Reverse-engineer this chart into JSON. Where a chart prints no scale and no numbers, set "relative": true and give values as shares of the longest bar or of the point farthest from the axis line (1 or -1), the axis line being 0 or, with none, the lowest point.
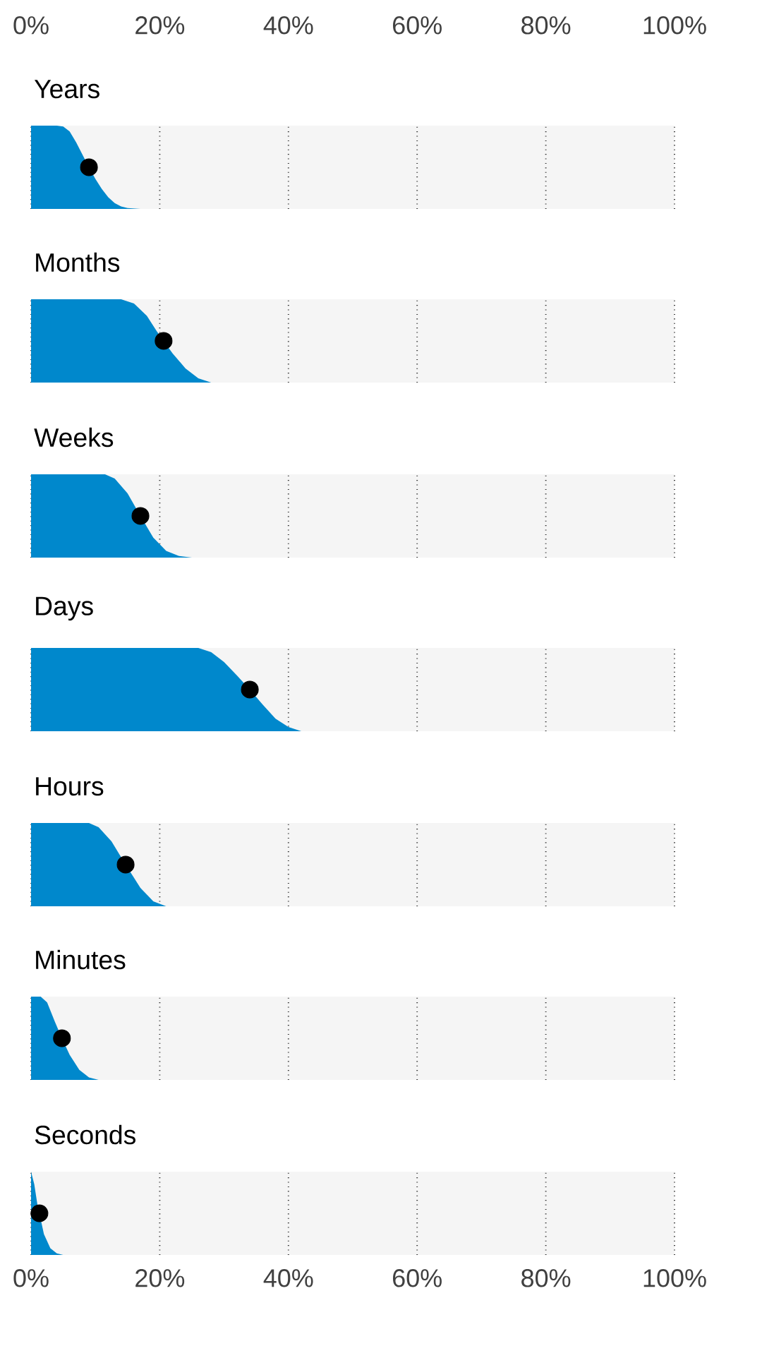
{
  "chart_data": [
    {
      "type": "area",
      "title": "Years",
      "relative": true,
      "xlim": [
        0,
        100
      ],
      "xticks": [
        {
          "value": 0,
          "label": "0%"
        },
        {
          "value": 20,
          "label": "20%"
        },
        {
          "value": 40,
          "label": "40%"
        },
        {
          "value": 60,
          "label": "60%"
        },
        {
          "value": 80,
          "label": "80%"
        },
        {
          "value": 100,
          "label": "100%"
        }
      ],
      "x2lim": [
        0,
        100
      ],
      "x2ticks": [
        {
          "value": 0,
          "label": "0%"
        },
        {
          "value": 20,
          "label": "20%"
        },
        {
          "value": 40,
          "label": "40%"
        },
        {
          "value": 60,
          "label": "60%"
        },
        {
          "value": 80,
          "label": "80%"
        },
        {
          "value": 100,
          "label": "100%"
        }
      ],
      "grid": "x",
      "tick_labels": false,
      "series": [
        {
          "type": "area",
          "color": "#0088cc",
          "x": [
            0,
            4,
            5,
            6,
            7,
            8,
            9,
            10,
            11,
            12,
            13,
            14,
            15,
            17
          ],
          "values": [
            1,
            1,
            0.99,
            0.93,
            0.8,
            0.65,
            0.5,
            0.36,
            0.24,
            0.14,
            0.07,
            0.03,
            0.01,
            0
          ]
        },
        {
          "type": "scatter",
          "color": "#000000",
          "marker": "circle",
          "x": [
            9
          ],
          "values": [
            0.5
          ]
        }
      ]
    },
    {
      "type": "area",
      "title": "Months",
      "relative": true,
      "xlim": [
        0,
        100
      ],
      "xticks": [
        {
          "value": 0,
          "label": null
        },
        {
          "value": 20,
          "label": null
        },
        {
          "value": 40,
          "label": null
        },
        {
          "value": 60,
          "label": null
        },
        {
          "value": 80,
          "label": null
        },
        {
          "value": 100,
          "label": null
        }
      ],
      "grid": "x",
      "tick_labels": false,
      "series": [
        {
          "type": "area",
          "color": "#0088cc",
          "x": [
            0,
            14,
            16,
            18,
            19.5,
            20.6,
            22,
            24,
            26,
            28
          ],
          "values": [
            1,
            1,
            0.95,
            0.8,
            0.62,
            0.5,
            0.35,
            0.17,
            0.05,
            0
          ]
        },
        {
          "type": "scatter",
          "color": "#000000",
          "marker": "circle",
          "x": [
            20.6
          ],
          "values": [
            0.5
          ]
        }
      ]
    },
    {
      "type": "area",
      "title": "Weeks",
      "relative": true,
      "xlim": [
        0,
        100
      ],
      "xticks": [
        {
          "value": 0,
          "label": null
        },
        {
          "value": 20,
          "label": null
        },
        {
          "value": 40,
          "label": null
        },
        {
          "value": 60,
          "label": null
        },
        {
          "value": 80,
          "label": null
        },
        {
          "value": 100,
          "label": null
        }
      ],
      "grid": "x",
      "tick_labels": false,
      "series": [
        {
          "type": "area",
          "color": "#0088cc",
          "x": [
            0,
            11.5,
            13,
            15,
            17,
            19,
            21,
            23,
            25
          ],
          "values": [
            1,
            1,
            0.95,
            0.77,
            0.5,
            0.24,
            0.08,
            0.02,
            0
          ]
        },
        {
          "type": "scatter",
          "color": "#000000",
          "marker": "circle",
          "x": [
            17
          ],
          "values": [
            0.5
          ]
        }
      ]
    },
    {
      "type": "area",
      "title": "Days",
      "relative": true,
      "xlim": [
        0,
        100
      ],
      "xticks": [
        {
          "value": 0,
          "label": null
        },
        {
          "value": 20,
          "label": null
        },
        {
          "value": 40,
          "label": null
        },
        {
          "value": 60,
          "label": null
        },
        {
          "value": 80,
          "label": null
        },
        {
          "value": 100,
          "label": null
        }
      ],
      "grid": "x",
      "tick_labels": false,
      "series": [
        {
          "type": "area",
          "color": "#0088cc",
          "x": [
            0,
            26,
            28,
            30,
            32,
            34,
            36,
            38,
            40,
            42
          ],
          "values": [
            1,
            1,
            0.95,
            0.83,
            0.67,
            0.5,
            0.32,
            0.15,
            0.05,
            0
          ]
        },
        {
          "type": "scatter",
          "color": "#000000",
          "marker": "circle",
          "x": [
            34
          ],
          "values": [
            0.5
          ]
        }
      ]
    },
    {
      "type": "area",
      "title": "Hours",
      "relative": true,
      "xlim": [
        0,
        100
      ],
      "xticks": [
        {
          "value": 0,
          "label": null
        },
        {
          "value": 20,
          "label": null
        },
        {
          "value": 40,
          "label": null
        },
        {
          "value": 60,
          "label": null
        },
        {
          "value": 80,
          "label": null
        },
        {
          "value": 100,
          "label": null
        }
      ],
      "grid": "x",
      "tick_labels": false,
      "series": [
        {
          "type": "area",
          "color": "#0088cc",
          "x": [
            0,
            9,
            10.5,
            12.5,
            14.7,
            17,
            19,
            21
          ],
          "values": [
            1,
            1,
            0.95,
            0.78,
            0.5,
            0.22,
            0.06,
            0
          ]
        },
        {
          "type": "scatter",
          "color": "#000000",
          "marker": "circle",
          "x": [
            14.7
          ],
          "values": [
            0.5
          ]
        }
      ]
    },
    {
      "type": "area",
      "title": "Minutes",
      "relative": true,
      "xlim": [
        0,
        100
      ],
      "xticks": [
        {
          "value": 0,
          "label": null
        },
        {
          "value": 20,
          "label": null
        },
        {
          "value": 40,
          "label": null
        },
        {
          "value": 60,
          "label": null
        },
        {
          "value": 80,
          "label": null
        },
        {
          "value": 100,
          "label": null
        }
      ],
      "grid": "x",
      "tick_labels": false,
      "series": [
        {
          "type": "area",
          "color": "#0088cc",
          "x": [
            0,
            1.5,
            2.5,
            3.7,
            4.8,
            6,
            7.5,
            9,
            10.5
          ],
          "values": [
            1,
            1,
            0.93,
            0.7,
            0.5,
            0.3,
            0.12,
            0.03,
            0
          ]
        },
        {
          "type": "scatter",
          "color": "#000000",
          "marker": "circle",
          "x": [
            4.8
          ],
          "values": [
            0.5
          ]
        }
      ]
    },
    {
      "type": "area",
      "title": "Seconds",
      "relative": true,
      "xlim": [
        0,
        100
      ],
      "xticks": [
        {
          "value": 0,
          "label": "0%"
        },
        {
          "value": 20,
          "label": "20%"
        },
        {
          "value": 40,
          "label": "40%"
        },
        {
          "value": 60,
          "label": "60%"
        },
        {
          "value": 80,
          "label": "80%"
        },
        {
          "value": 100,
          "label": "100%"
        }
      ],
      "grid": "x",
      "tick_labels": "x",
      "series": [
        {
          "type": "area",
          "color": "#0088cc",
          "x": [
            0,
            0.5,
            1,
            1.3,
            2,
            3,
            4,
            5
          ],
          "values": [
            1,
            0.85,
            0.6,
            0.5,
            0.25,
            0.08,
            0.02,
            0
          ]
        },
        {
          "type": "scatter",
          "color": "#000000",
          "marker": "circle",
          "x": [
            1.3
          ],
          "values": [
            0.5
          ]
        }
      ]
    }
  ]
}
